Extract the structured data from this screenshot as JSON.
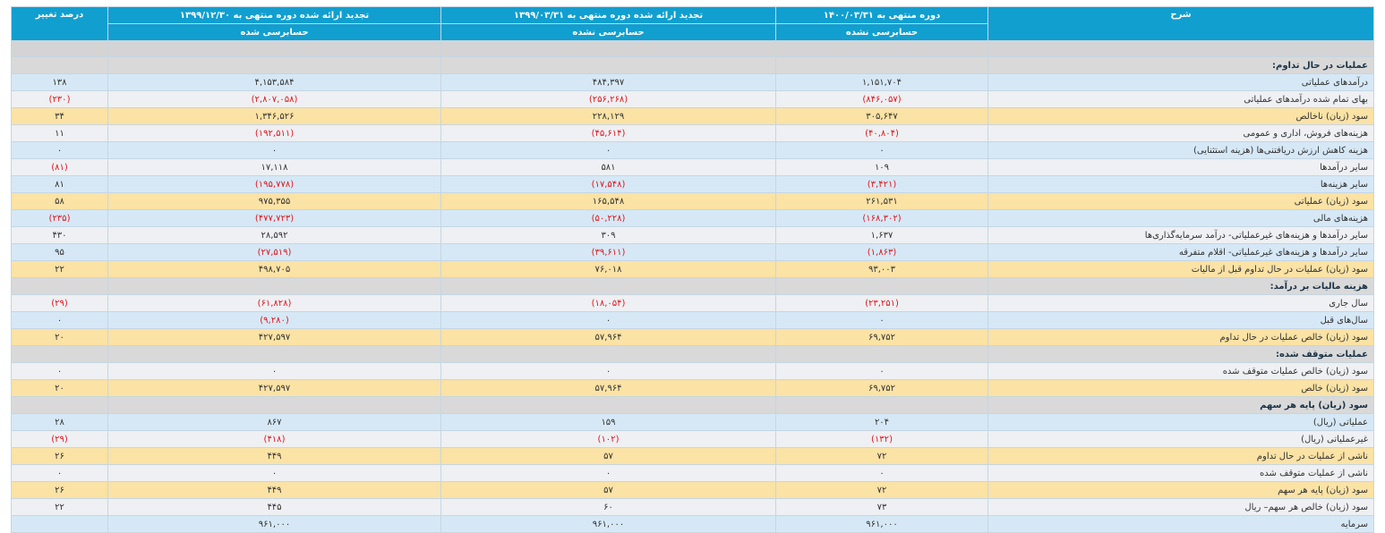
{
  "header": {
    "col_desc": "شرح",
    "col1_title": "دوره منتهی به ۱۴۰۰/۰۳/۳۱",
    "col1_sub": "حسابرسی نشده",
    "col2_title": "تجدید ارائه شده دوره منتهی به ۱۳۹۹/۰۳/۳۱",
    "col2_sub": "حسابرسی نشده",
    "col3_title": "تجدید ارائه شده دوره منتهی به ۱۳۹۹/۱۲/۳۰",
    "col3_sub": "حسابرسی شده",
    "col_change": "درصد تغییر"
  },
  "rows": [
    {
      "type": "section",
      "label": "عملیات در حال تداوم:",
      "c1": "",
      "c2": "",
      "c3": "",
      "chg": ""
    },
    {
      "type": "blue",
      "label": "درآمدهای عملیاتی",
      "c1": "۱,۱۵۱,۷۰۴",
      "c2": "۴۸۴,۳۹۷",
      "c3": "۴,۱۵۳,۵۸۴",
      "chg": "۱۳۸"
    },
    {
      "type": "gray",
      "label": "بهای تمام شده درآمدهای عملیاتی",
      "c1": "(۸۴۶,۰۵۷)",
      "c2": "(۲۵۶,۲۶۸)",
      "c3": "(۲,۸۰۷,۰۵۸)",
      "chg": "(۲۳۰)"
    },
    {
      "type": "yellow",
      "label": "سود (زیان) ناخالص",
      "c1": "۳۰۵,۶۴۷",
      "c2": "۲۲۸,۱۲۹",
      "c3": "۱,۳۴۶,۵۲۶",
      "chg": "۳۴"
    },
    {
      "type": "gray",
      "label": "هزینه‌های فروش، اداری و عمومی",
      "c1": "(۴۰,۸۰۴)",
      "c2": "(۴۵,۶۱۴)",
      "c3": "(۱۹۲,۵۱۱)",
      "chg": "۱۱"
    },
    {
      "type": "blue",
      "label": "هزینه کاهش ارزش دریافتنی‌ها (هزینه استثنایی)",
      "c1": "۰",
      "c2": "۰",
      "c3": "۰",
      "chg": "۰"
    },
    {
      "type": "gray",
      "label": "سایر درآمدها",
      "c1": "۱۰۹",
      "c2": "۵۸۱",
      "c3": "۱۷,۱۱۸",
      "chg": "(۸۱)"
    },
    {
      "type": "blue",
      "label": "سایر هزینه‌ها",
      "c1": "(۳,۴۲۱)",
      "c2": "(۱۷,۵۴۸)",
      "c3": "(۱۹۵,۷۷۸)",
      "chg": "۸۱"
    },
    {
      "type": "yellow",
      "label": "سود (زیان) عملیاتی",
      "c1": "۲۶۱,۵۳۱",
      "c2": "۱۶۵,۵۴۸",
      "c3": "۹۷۵,۳۵۵",
      "chg": "۵۸"
    },
    {
      "type": "blue",
      "label": "هزینه‌های مالی",
      "c1": "(۱۶۸,۳۰۲)",
      "c2": "(۵۰,۲۲۸)",
      "c3": "(۴۷۷,۷۲۳)",
      "chg": "(۲۳۵)"
    },
    {
      "type": "gray",
      "label": "سایر درآمدها و هزینه‌های غیرعملیاتی- درآمد سرمایه‌گذاری‌ها",
      "c1": "۱,۶۳۷",
      "c2": "۳۰۹",
      "c3": "۲۸,۵۹۲",
      "chg": "۴۳۰"
    },
    {
      "type": "blue",
      "label": "سایر درآمدها و هزینه‌های غیرعملیاتی- اقلام متفرقه",
      "c1": "(۱,۸۶۳)",
      "c2": "(۳۹,۶۱۱)",
      "c3": "(۲۷,۵۱۹)",
      "chg": "۹۵"
    },
    {
      "type": "yellow",
      "label": "سود (زیان) عملیات در حال تداوم قبل از مالیات",
      "c1": "۹۳,۰۰۳",
      "c2": "۷۶,۰۱۸",
      "c3": "۴۹۸,۷۰۵",
      "chg": "۲۲"
    },
    {
      "type": "section",
      "label": "هزینه مالیات بر درآمد:",
      "c1": "",
      "c2": "",
      "c3": "",
      "chg": ""
    },
    {
      "type": "gray",
      "label": "سال جاری",
      "c1": "(۲۳,۲۵۱)",
      "c2": "(۱۸,۰۵۴)",
      "c3": "(۶۱,۸۲۸)",
      "chg": "(۲۹)"
    },
    {
      "type": "blue",
      "label": "سال‌های قبل",
      "c1": "۰",
      "c2": "۰",
      "c3": "(۹,۲۸۰)",
      "chg": "۰"
    },
    {
      "type": "yellow",
      "label": "سود (زیان) خالص عملیات در حال تداوم",
      "c1": "۶۹,۷۵۲",
      "c2": "۵۷,۹۶۴",
      "c3": "۴۲۷,۵۹۷",
      "chg": "۲۰"
    },
    {
      "type": "section",
      "label": "عملیات متوقف شده:",
      "c1": "",
      "c2": "",
      "c3": "",
      "chg": ""
    },
    {
      "type": "gray",
      "label": "سود (زیان) خالص عملیات متوقف شده",
      "c1": "۰",
      "c2": "۰",
      "c3": "۰",
      "chg": "۰"
    },
    {
      "type": "yellow",
      "label": "سود (زیان) خالص",
      "c1": "۶۹,۷۵۲",
      "c2": "۵۷,۹۶۴",
      "c3": "۴۲۷,۵۹۷",
      "chg": "۲۰"
    },
    {
      "type": "section",
      "label": "سود (زیان) پایه هر سهم",
      "c1": "",
      "c2": "",
      "c3": "",
      "chg": ""
    },
    {
      "type": "blue",
      "label": "عملیاتی (ریال)",
      "c1": "۲۰۴",
      "c2": "۱۵۹",
      "c3": "۸۶۷",
      "chg": "۲۸"
    },
    {
      "type": "gray",
      "label": "غیرعملیاتی (ریال)",
      "c1": "(۱۳۲)",
      "c2": "(۱۰۲)",
      "c3": "(۴۱۸)",
      "chg": "(۲۹)"
    },
    {
      "type": "yellow",
      "label": "ناشی از عملیات در حال تداوم",
      "c1": "۷۲",
      "c2": "۵۷",
      "c3": "۴۴۹",
      "chg": "۲۶"
    },
    {
      "type": "gray",
      "label": "ناشی از عملیات متوقف شده",
      "c1": "۰",
      "c2": "۰",
      "c3": "۰",
      "chg": "۰"
    },
    {
      "type": "yellow",
      "label": "سود (زیان) پایه هر سهم",
      "c1": "۷۲",
      "c2": "۵۷",
      "c3": "۴۴۹",
      "chg": "۲۶"
    },
    {
      "type": "gray",
      "label": "سود (زیان) خالص هر سهم– ریال",
      "c1": "۷۳",
      "c2": "۶۰",
      "c3": "۴۴۵",
      "chg": "۲۲"
    },
    {
      "type": "blue",
      "label": "سرمایه",
      "c1": "۹۶۱,۰۰۰",
      "c2": "۹۶۱,۰۰۰",
      "c3": "۹۶۱,۰۰۰",
      "chg": ""
    }
  ]
}
